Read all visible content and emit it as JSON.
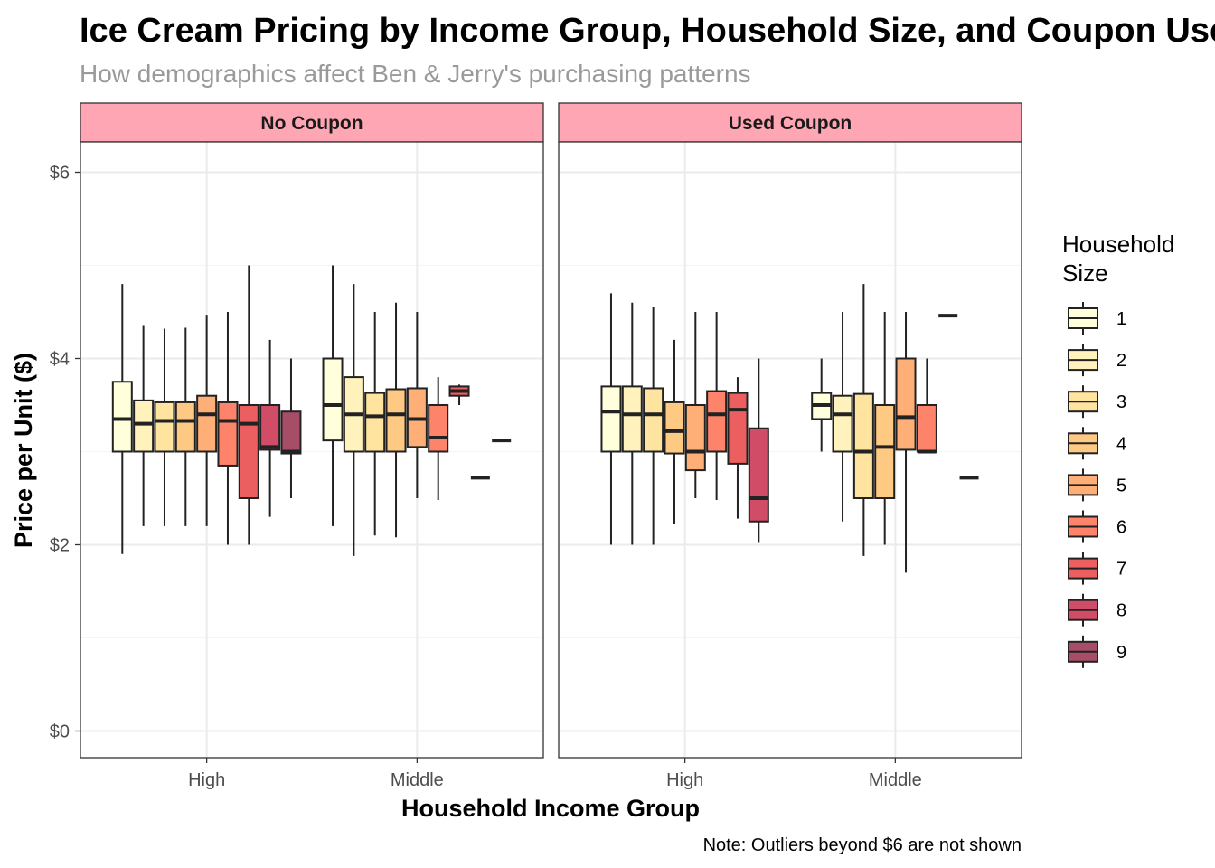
{
  "chart_data": {
    "type": "boxplot",
    "title": "Ice Cream Pricing by Income Group, Household Size, and Coupon Use",
    "subtitle": "How demographics affect Ben & Jerry's purchasing patterns",
    "xlabel": "Household Income Group",
    "ylabel": "Price per Unit ($)",
    "caption": "Note: Outliers beyond $6 are not shown",
    "ylim": [
      -0.3,
      6.3
    ],
    "yticks": [
      0,
      2,
      4,
      6
    ],
    "ytick_labels": [
      "$0",
      "$2",
      "$4",
      "$6"
    ],
    "categories": [
      "High",
      "Middle"
    ],
    "legend": {
      "title_lines": [
        "Household",
        "Size"
      ],
      "labels": [
        "1",
        "2",
        "3",
        "4",
        "5",
        "6",
        "7",
        "8",
        "9"
      ],
      "colors": [
        "#FFFFCC",
        "#FFEDA0",
        "#FED976",
        "#FEB24C",
        "#FD8D3C",
        "#FC4E2A",
        "#E31A1C",
        "#BD0026",
        "#800026"
      ]
    },
    "box_alpha": 0.7,
    "line_color": "#222222",
    "panels": [
      {
        "label": "No Coupon",
        "groups": [
          {
            "category": "High",
            "boxes": [
              {
                "size": "1",
                "min": 1.9,
                "q1": 3.0,
                "median": 3.35,
                "q3": 3.75,
                "max": 4.8
              },
              {
                "size": "2",
                "min": 2.2,
                "q1": 3.0,
                "median": 3.3,
                "q3": 3.55,
                "max": 4.35
              },
              {
                "size": "3",
                "min": 2.2,
                "q1": 3.0,
                "median": 3.33,
                "q3": 3.53,
                "max": 4.32
              },
              {
                "size": "4",
                "min": 2.2,
                "q1": 3.0,
                "median": 3.33,
                "q3": 3.53,
                "max": 4.33
              },
              {
                "size": "5",
                "min": 2.2,
                "q1": 3.0,
                "median": 3.4,
                "q3": 3.6,
                "max": 4.47
              },
              {
                "size": "6",
                "min": 2.0,
                "q1": 2.85,
                "median": 3.33,
                "q3": 3.53,
                "max": 4.5
              },
              {
                "size": "7",
                "min": 2.0,
                "q1": 2.5,
                "median": 3.3,
                "q3": 3.5,
                "max": 5.0
              },
              {
                "size": "8",
                "min": 2.3,
                "q1": 3.02,
                "median": 3.05,
                "q3": 3.5,
                "max": 4.2
              },
              {
                "size": "9",
                "min": 2.5,
                "q1": 2.98,
                "median": 3.0,
                "q3": 3.43,
                "max": 4.0
              }
            ]
          },
          {
            "category": "Middle",
            "boxes": [
              {
                "size": "1",
                "min": 2.2,
                "q1": 3.12,
                "median": 3.5,
                "q3": 4.0,
                "max": 5.0
              },
              {
                "size": "2",
                "min": 1.88,
                "q1": 3.0,
                "median": 3.4,
                "q3": 3.8,
                "max": 4.8
              },
              {
                "size": "3",
                "min": 2.1,
                "q1": 3.0,
                "median": 3.38,
                "q3": 3.63,
                "max": 4.5
              },
              {
                "size": "4",
                "min": 2.08,
                "q1": 3.0,
                "median": 3.4,
                "q3": 3.67,
                "max": 4.6
              },
              {
                "size": "5",
                "min": 2.5,
                "q1": 3.05,
                "median": 3.35,
                "q3": 3.68,
                "max": 4.5
              },
              {
                "size": "6",
                "min": 2.48,
                "q1": 3.0,
                "median": 3.15,
                "q3": 3.5,
                "max": 3.8
              },
              {
                "size": "7",
                "min": 3.5,
                "q1": 3.6,
                "median": 3.65,
                "q3": 3.7,
                "max": 3.72
              },
              {
                "size": "8",
                "min": 2.72,
                "q1": 2.72,
                "median": 2.72,
                "q3": 2.72,
                "max": 2.72
              },
              {
                "size": "9",
                "min": 3.12,
                "q1": 3.12,
                "median": 3.12,
                "q3": 3.12,
                "max": 3.12
              }
            ]
          }
        ]
      },
      {
        "label": "Used Coupon",
        "groups": [
          {
            "category": "High",
            "boxes": [
              {
                "size": "1",
                "min": 2.0,
                "q1": 3.0,
                "median": 3.43,
                "q3": 3.7,
                "max": 4.7
              },
              {
                "size": "2",
                "min": 2.0,
                "q1": 3.0,
                "median": 3.4,
                "q3": 3.7,
                "max": 4.6
              },
              {
                "size": "3",
                "min": 2.0,
                "q1": 3.0,
                "median": 3.4,
                "q3": 3.68,
                "max": 4.55
              },
              {
                "size": "4",
                "min": 2.22,
                "q1": 2.98,
                "median": 3.22,
                "q3": 3.53,
                "max": 4.2
              },
              {
                "size": "5",
                "min": 2.5,
                "q1": 2.8,
                "median": 3.0,
                "q3": 3.5,
                "max": 4.5
              },
              {
                "size": "6",
                "min": 2.48,
                "q1": 3.0,
                "median": 3.4,
                "q3": 3.65,
                "max": 4.5
              },
              {
                "size": "7",
                "min": 2.28,
                "q1": 2.87,
                "median": 3.45,
                "q3": 3.63,
                "max": 3.8
              },
              {
                "size": "8",
                "min": 2.02,
                "q1": 2.25,
                "median": 2.5,
                "q3": 3.25,
                "max": 4.0
              }
            ]
          },
          {
            "category": "Middle",
            "boxes": [
              {
                "size": "1",
                "min": 3.0,
                "q1": 3.35,
                "median": 3.5,
                "q3": 3.63,
                "max": 4.0
              },
              {
                "size": "2",
                "min": 2.25,
                "q1": 3.0,
                "median": 3.4,
                "q3": 3.6,
                "max": 4.5
              },
              {
                "size": "3",
                "min": 1.88,
                "q1": 2.5,
                "median": 3.0,
                "q3": 3.62,
                "max": 4.8
              },
              {
                "size": "4",
                "min": 2.0,
                "q1": 2.5,
                "median": 3.05,
                "q3": 3.5,
                "max": 4.5
              },
              {
                "size": "5",
                "min": 1.7,
                "q1": 3.02,
                "median": 3.37,
                "q3": 4.0,
                "max": 4.5
              },
              {
                "size": "6",
                "min": 2.98,
                "q1": 3.0,
                "median": 3.0,
                "q3": 3.5,
                "max": 4.0
              },
              {
                "size": "7",
                "min": 4.46,
                "q1": 4.46,
                "median": 4.46,
                "q3": 4.46,
                "max": 4.46
              },
              {
                "size": "8",
                "min": 2.72,
                "q1": 2.72,
                "median": 2.72,
                "q3": 2.72,
                "max": 2.72
              }
            ]
          }
        ]
      }
    ]
  }
}
